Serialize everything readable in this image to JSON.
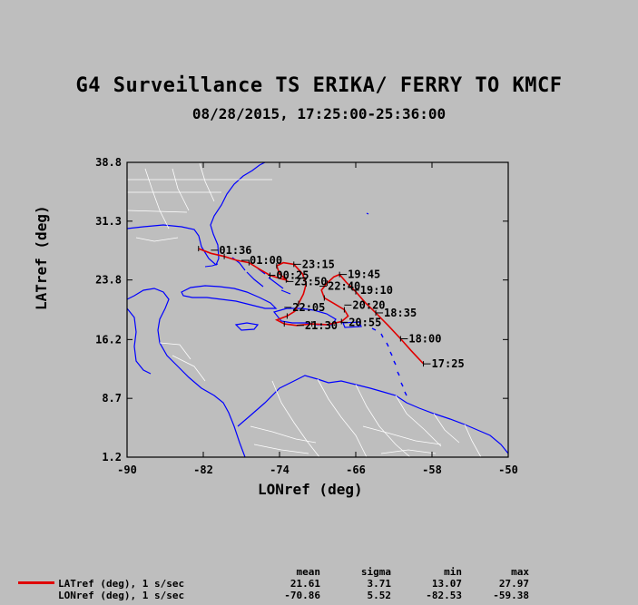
{
  "title": "G4 Surveillance TS ERIKA/ FERRY TO KMCF",
  "subtitle": "08/28/2015, 17:25:00-25:36:00",
  "colors": {
    "background": "#bebebe",
    "track": "#e00000",
    "coast": "#0000ff",
    "borders": "#ffffff",
    "frame": "#000000"
  },
  "chart_data": {
    "type": "map-track",
    "xlabel": "LONref (deg)",
    "ylabel": "LATref (deg)",
    "xlim": [
      -90,
      -50
    ],
    "ylim": [
      1.2,
      38.8
    ],
    "x_ticks": [
      -90,
      -82,
      -74,
      -66,
      -58,
      -50
    ],
    "x_tick_labels": [
      "-90",
      "-82",
      "-74",
      "-66",
      "-58",
      "-50"
    ],
    "y_ticks": [
      1.2,
      8.7,
      16.2,
      23.8,
      31.3,
      38.8
    ],
    "y_tick_labels": [
      "1.2",
      "8.7",
      "16.2",
      "23.8",
      "31.3",
      "38.8"
    ],
    "track": [
      [
        -58.9,
        13.1
      ],
      [
        -60.2,
        14.8
      ],
      [
        -61.3,
        16.3
      ],
      [
        -62.6,
        18.0
      ],
      [
        -63.9,
        19.6
      ],
      [
        -65.0,
        20.9
      ],
      [
        -66.0,
        22.3
      ],
      [
        -67.0,
        23.5
      ],
      [
        -67.7,
        24.5
      ],
      [
        -68.3,
        24.2
      ],
      [
        -69.0,
        23.4
      ],
      [
        -69.6,
        22.5
      ],
      [
        -69.3,
        21.5
      ],
      [
        -68.3,
        20.8
      ],
      [
        -67.2,
        20.0
      ],
      [
        -66.8,
        19.2
      ],
      [
        -67.5,
        18.5
      ],
      [
        -69.0,
        18.1
      ],
      [
        -70.6,
        18.2
      ],
      [
        -72.2,
        18.0
      ],
      [
        -73.5,
        18.2
      ],
      [
        -74.3,
        18.7
      ],
      [
        -73.2,
        19.2
      ],
      [
        -72.4,
        19.8
      ],
      [
        -72.0,
        20.8
      ],
      [
        -71.5,
        22.0
      ],
      [
        -71.2,
        23.3
      ],
      [
        -71.6,
        24.6
      ],
      [
        -72.5,
        25.8
      ],
      [
        -73.6,
        26.0
      ],
      [
        -74.3,
        25.6
      ],
      [
        -74.0,
        24.6
      ],
      [
        -73.3,
        23.8
      ],
      [
        -74.0,
        24.0
      ],
      [
        -75.0,
        24.4
      ],
      [
        -76.0,
        25.1
      ],
      [
        -77.2,
        26.0
      ],
      [
        -78.5,
        26.3
      ],
      [
        -79.8,
        26.8
      ],
      [
        -81.2,
        27.2
      ],
      [
        -82.5,
        27.8
      ]
    ],
    "time_labels": [
      {
        "text": "17:25",
        "lon": -58.9,
        "lat": 13.1
      },
      {
        "text": "18:00",
        "lon": -61.3,
        "lat": 16.3
      },
      {
        "text": "18:35",
        "lon": -63.9,
        "lat": 19.6
      },
      {
        "text": "19:10",
        "lon": -66.4,
        "lat": 22.5
      },
      {
        "text": "19:45",
        "lon": -67.7,
        "lat": 24.5
      },
      {
        "text": "20:20",
        "lon": -67.2,
        "lat": 20.6
      },
      {
        "text": "20:55",
        "lon": -67.6,
        "lat": 18.4
      },
      {
        "text": "21:30",
        "lon": -72.2,
        "lat": 18.0
      },
      {
        "text": "22:05",
        "lon": -73.5,
        "lat": 20.3
      },
      {
        "text": "22:40",
        "lon": -69.8,
        "lat": 23.0
      },
      {
        "text": "23:15",
        "lon": -72.5,
        "lat": 25.8
      },
      {
        "text": "23:50",
        "lon": -73.3,
        "lat": 23.6
      },
      {
        "text": "00:25",
        "lon": -75.2,
        "lat": 24.4
      },
      {
        "text": "01:00",
        "lon": -78.0,
        "lat": 26.3
      },
      {
        "text": "01:36",
        "lon": -81.2,
        "lat": 27.6
      }
    ]
  },
  "stats": {
    "headers": [
      "mean",
      "sigma",
      "min",
      "max"
    ],
    "rows": [
      {
        "name": "LATref (deg), 1 s/sec",
        "mean": "21.61",
        "sigma": "3.71",
        "min": "13.07",
        "max": "27.97"
      },
      {
        "name": "LONref (deg), 1 s/sec",
        "mean": "-70.86",
        "sigma": "5.52",
        "min": "-82.53",
        "max": "-59.38"
      }
    ]
  }
}
